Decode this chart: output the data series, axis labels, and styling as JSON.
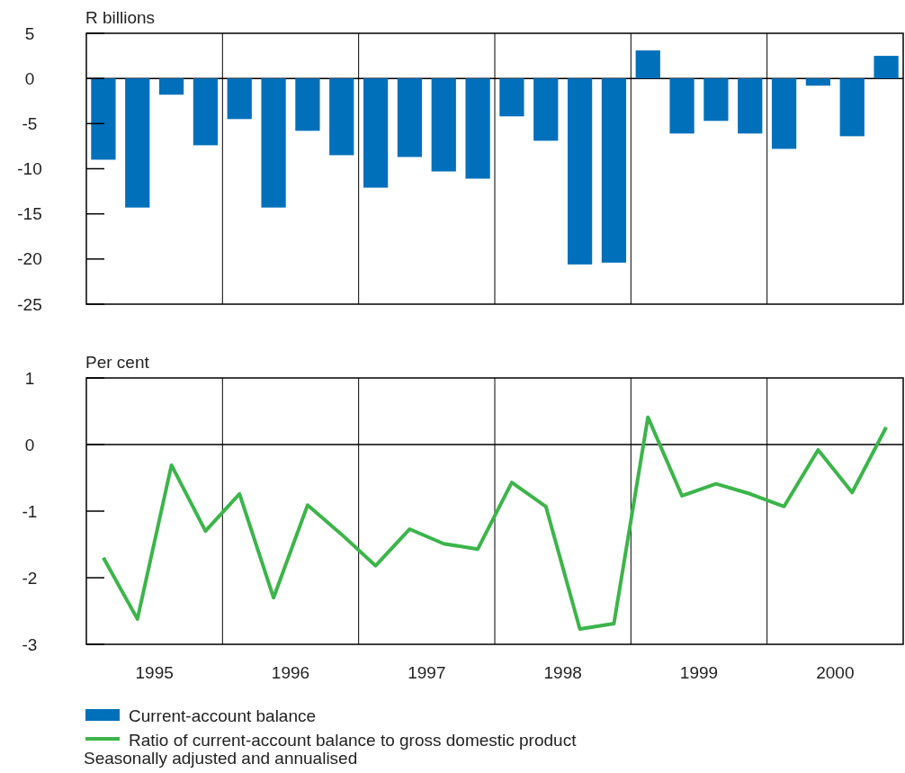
{
  "chart_data": [
    {
      "type": "bar",
      "ylabel": "R billions",
      "x": [
        1995.125,
        1995.375,
        1995.625,
        1995.875,
        1996.125,
        1996.375,
        1996.625,
        1996.875,
        1997.125,
        1997.375,
        1997.625,
        1997.875,
        1998.125,
        1998.375,
        1998.625,
        1998.875,
        1999.125,
        1999.375,
        1999.625,
        1999.875,
        2000.125,
        2000.375,
        2000.625,
        2000.875
      ],
      "series": [
        {
          "name": "Current-account balance",
          "color": "#0070bb",
          "values": [
            -9.0,
            -14.3,
            -1.8,
            -7.4,
            -4.5,
            -14.3,
            -5.8,
            -8.5,
            -12.1,
            -8.7,
            -10.3,
            -11.1,
            -4.2,
            -6.9,
            -20.6,
            -20.4,
            3.1,
            -6.1,
            -4.7,
            -6.1,
            -7.8,
            -0.8,
            -6.4,
            2.5
          ]
        }
      ],
      "xlim": [
        1995,
        2001
      ],
      "ylim": [
        -25,
        5
      ],
      "yticks": [
        5,
        0,
        -5,
        -10,
        -15,
        -20,
        -25
      ],
      "tick_labels": "y",
      "legend": "bottom",
      "ref_lines": [
        {
          "axis": "y",
          "value": 0
        },
        {
          "axis": "x",
          "value": 1996
        },
        {
          "axis": "x",
          "value": 1997
        },
        {
          "axis": "x",
          "value": 1998
        },
        {
          "axis": "x",
          "value": 1999
        },
        {
          "axis": "x",
          "value": 2000
        }
      ]
    },
    {
      "type": "line",
      "ylabel": "Per cent",
      "x": [
        1995.125,
        1995.375,
        1995.625,
        1995.875,
        1996.125,
        1996.375,
        1996.625,
        1996.875,
        1997.125,
        1997.375,
        1997.625,
        1997.875,
        1998.125,
        1998.375,
        1998.625,
        1998.875,
        1999.125,
        1999.375,
        1999.625,
        1999.875,
        2000.125,
        2000.375,
        2000.625,
        2000.875
      ],
      "series": [
        {
          "name": "Ratio of current-account balance to gross domestic product",
          "color": "#3cb54a",
          "values": [
            -1.7,
            -2.62,
            -0.31,
            -1.3,
            -0.74,
            -2.3,
            -0.91,
            -1.35,
            -1.82,
            -1.27,
            -1.49,
            -1.57,
            -0.57,
            -0.93,
            -2.77,
            -2.69,
            0.41,
            -0.77,
            -0.59,
            -0.74,
            -0.93,
            -0.08,
            -0.72,
            0.26
          ]
        }
      ],
      "xlim": [
        1995,
        2001
      ],
      "xticks": [
        {
          "value": 1995.5,
          "label": "1995"
        },
        {
          "value": 1996.5,
          "label": "1996"
        },
        {
          "value": 1997.5,
          "label": "1997"
        },
        {
          "value": 1998.5,
          "label": "1998"
        },
        {
          "value": 1999.5,
          "label": "1999"
        },
        {
          "value": 2000.5,
          "label": "2000"
        }
      ],
      "ylim": [
        -3,
        1
      ],
      "yticks": [
        1,
        0,
        -1,
        -2,
        -3
      ],
      "legend": "bottom",
      "marker": "none",
      "line_style": "solid",
      "annotations": [
        "Seasonally adjusted and annualised"
      ],
      "ref_lines": [
        {
          "axis": "y",
          "value": 0
        },
        {
          "axis": "x",
          "value": 1996
        },
        {
          "axis": "x",
          "value": 1997
        },
        {
          "axis": "x",
          "value": 1998
        },
        {
          "axis": "x",
          "value": 1999
        },
        {
          "axis": "x",
          "value": 2000
        }
      ]
    }
  ]
}
